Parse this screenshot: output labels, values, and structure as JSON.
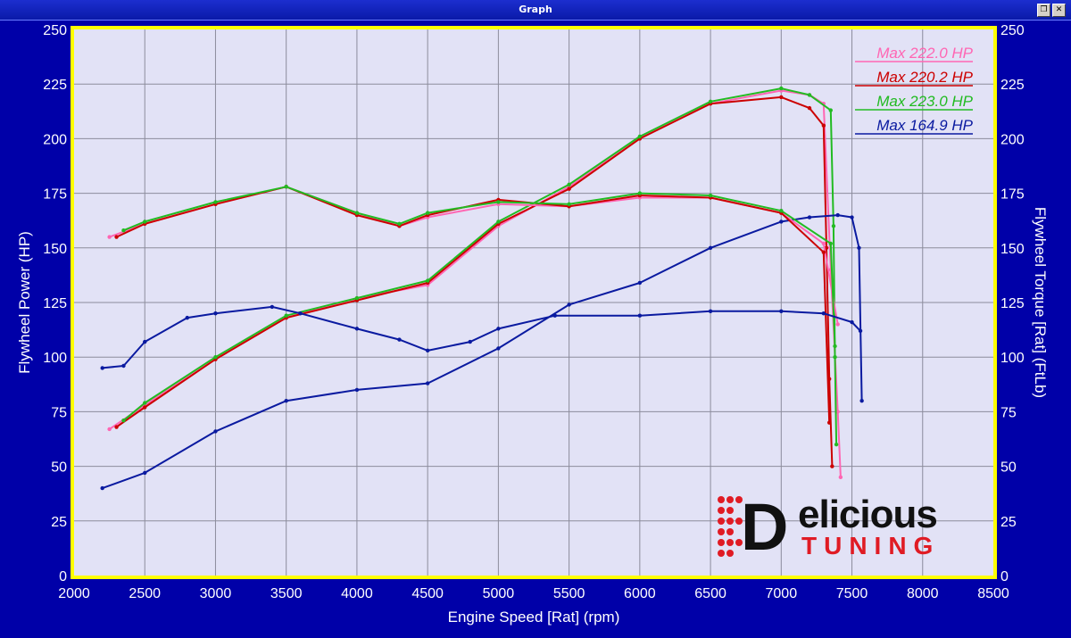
{
  "window": {
    "title": "Graph",
    "restore_icon": "restore-icon",
    "close_icon": "close-icon",
    "restore_glyph": "❐",
    "close_glyph": "✕"
  },
  "logo": {
    "brand_line1": "elicious",
    "brand_d": "D",
    "brand_line2": "TUNING",
    "dots_icon": "dots-icon"
  },
  "chart_data": {
    "type": "line",
    "xlabel": "Engine Speed [Rat] (rpm)",
    "ylabel_left": "Flywheel Power (HP)",
    "ylabel_right": "Flywheel Torque [Rat] (FtLb)",
    "xlim": [
      2000,
      8500
    ],
    "ylim": [
      0,
      250
    ],
    "xticks": [
      "2000",
      "2500",
      "3000",
      "3500",
      "4000",
      "4500",
      "5000",
      "5500",
      "6000",
      "6500",
      "7000",
      "7500",
      "8000",
      "8500"
    ],
    "yticks": [
      "0",
      "25",
      "50",
      "75",
      "100",
      "125",
      "150",
      "175",
      "200",
      "225",
      "250"
    ],
    "grid": true,
    "legend": {
      "position": "top-right",
      "entries": [
        {
          "label": "Max 222.0 HP",
          "color": "#ff66b3"
        },
        {
          "label": "Max 220.2 HP",
          "color": "#cc0000"
        },
        {
          "label": "Max 223.0 HP",
          "color": "#22bb22"
        },
        {
          "label": "Max 164.9 HP",
          "color": "#0a1aa0"
        }
      ]
    },
    "colors": {
      "background": "#e2e2f6",
      "border": "#ffff00",
      "grid": "#8c8c9c",
      "frame": "#0000a8",
      "axis_text": "#ffffff"
    },
    "series": [
      {
        "kind": "power",
        "color": "#ff66b3",
        "x": [
          2250,
          2500,
          3000,
          3500,
          4000,
          4500,
          5000,
          5500,
          6000,
          6500,
          7000,
          7200,
          7300,
          7350,
          7400,
          7420
        ],
        "y": [
          67,
          78,
          99,
          118,
          127,
          133,
          160,
          178,
          200,
          216,
          222,
          220,
          216,
          140,
          75,
          45
        ]
      },
      {
        "kind": "power",
        "color": "#cc0000",
        "x": [
          2300,
          2500,
          3000,
          3500,
          4000,
          4500,
          5000,
          5500,
          6000,
          6500,
          7000,
          7200,
          7300,
          7320,
          7340,
          7360
        ],
        "y": [
          68,
          77,
          99,
          118,
          126,
          134,
          161,
          177,
          200,
          216,
          219,
          214,
          206,
          150,
          90,
          50
        ]
      },
      {
        "kind": "power",
        "color": "#22bb22",
        "x": [
          2350,
          2500,
          3000,
          3500,
          4000,
          4500,
          5000,
          5500,
          6000,
          6500,
          7000,
          7200,
          7350,
          7370,
          7380,
          7390
        ],
        "y": [
          71,
          79,
          100,
          119,
          127,
          135,
          162,
          179,
          201,
          217,
          223,
          220,
          213,
          160,
          100,
          60
        ]
      },
      {
        "kind": "power",
        "color": "#0a1aa0",
        "x": [
          2200,
          2500,
          3000,
          3500,
          4000,
          4500,
          5000,
          5500,
          6000,
          6500,
          7000,
          7200,
          7400,
          7500,
          7550,
          7570
        ],
        "y": [
          40,
          47,
          66,
          80,
          85,
          88,
          104,
          124,
          134,
          150,
          162,
          164,
          165,
          164,
          150,
          80
        ]
      },
      {
        "kind": "torque",
        "color": "#ff66b3",
        "x": [
          2250,
          2500,
          3000,
          3500,
          4000,
          4300,
          4500,
          5000,
          5500,
          6000,
          6500,
          7000,
          7300,
          7400
        ],
        "y": [
          155,
          161,
          170,
          178,
          166,
          160,
          164,
          170,
          169,
          173,
          173,
          166,
          152,
          115
        ]
      },
      {
        "kind": "torque",
        "color": "#cc0000",
        "x": [
          2300,
          2500,
          3000,
          3500,
          4000,
          4300,
          4500,
          5000,
          5500,
          6000,
          6500,
          7000,
          7300,
          7340
        ],
        "y": [
          155,
          161,
          170,
          178,
          165,
          160,
          165,
          172,
          169,
          174,
          173,
          166,
          148,
          70
        ]
      },
      {
        "kind": "torque",
        "color": "#22bb22",
        "x": [
          2350,
          2500,
          3000,
          3500,
          4000,
          4300,
          4500,
          5000,
          5500,
          6000,
          6500,
          7000,
          7350,
          7380
        ],
        "y": [
          158,
          162,
          171,
          178,
          166,
          161,
          166,
          171,
          170,
          175,
          174,
          167,
          152,
          105
        ]
      },
      {
        "kind": "torque",
        "color": "#0a1aa0",
        "x": [
          2200,
          2350,
          2500,
          2800,
          3000,
          3400,
          3600,
          4000,
          4300,
          4500,
          4800,
          5000,
          5400,
          6000,
          6500,
          7000,
          7300,
          7500,
          7560
        ],
        "y": [
          95,
          96,
          107,
          118,
          120,
          123,
          120,
          113,
          108,
          103,
          107,
          113,
          119,
          119,
          121,
          121,
          120,
          116,
          112
        ]
      }
    ]
  }
}
